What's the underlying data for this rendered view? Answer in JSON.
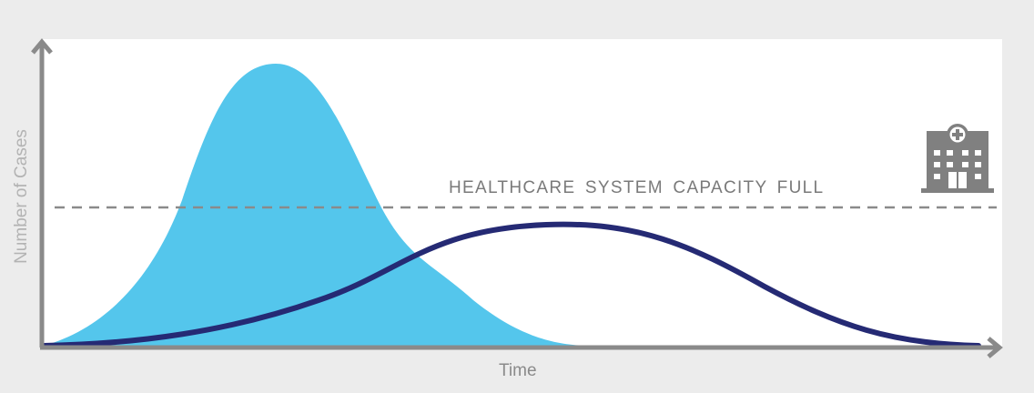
{
  "diagram": {
    "capacity_label": "HEALTHCARE SYSTEM CAPACITY FULL",
    "x_axis_label": "Time",
    "y_axis_label": "Number of Cases",
    "hospital_icon": "hospital-building-icon",
    "colors": {
      "background": "#ececec",
      "plot": "#ffffff",
      "tall_peak_fill": "#54c6ec",
      "flattened_curve": "#252a74",
      "axes": "#8a8a8a",
      "capacity_line": "#8a8a8a",
      "icon": "#808080"
    }
  }
}
